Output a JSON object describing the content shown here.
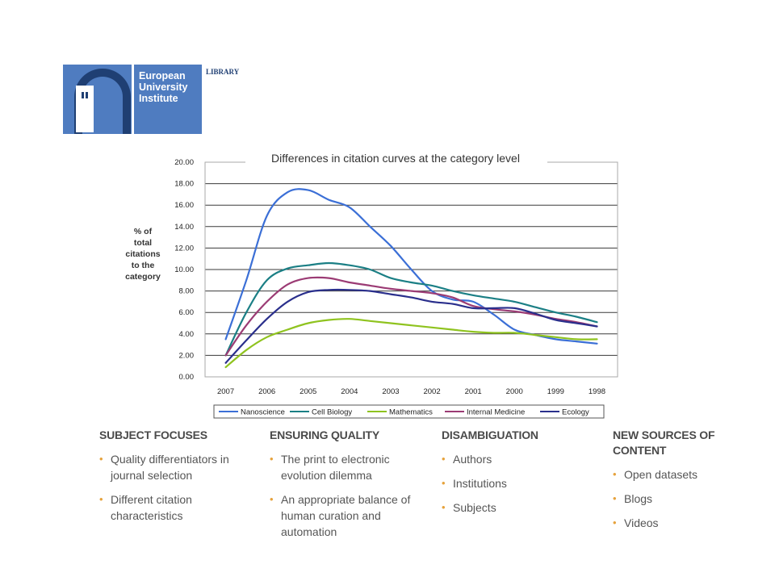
{
  "logo": {
    "line1": "European",
    "line2": "University",
    "line3": "Institute",
    "library": "LIBRARY",
    "colors": {
      "blue": "#4f7cc0",
      "dark": "#1f3f73"
    }
  },
  "chart_data": {
    "type": "line",
    "title": "Differences in citation curves at the category level",
    "ylabel": "% of total citations to the category",
    "ylabel_lines": [
      "% of",
      "total",
      "citations",
      "to the",
      "category"
    ],
    "xlabel": "",
    "categories": [
      "2007",
      "2006",
      "2005",
      "2004",
      "2003",
      "2002",
      "2001",
      "2000",
      "1999",
      "1998"
    ],
    "yticks": [
      "0.00",
      "2.00",
      "4.00",
      "6.00",
      "8.00",
      "10.00",
      "12.00",
      "14.00",
      "16.00",
      "18.00",
      "20.00"
    ],
    "ylim": [
      0,
      20
    ],
    "grid": true,
    "legend_position": "bottom",
    "series": [
      {
        "name": "Nanoscience",
        "color": "#3b6fd6",
        "points": [
          [
            0,
            3.5
          ],
          [
            0.5,
            9
          ],
          [
            1,
            15
          ],
          [
            1.5,
            17.2
          ],
          [
            2,
            17.4
          ],
          [
            2.5,
            16.5
          ],
          [
            3,
            15.8
          ],
          [
            3.5,
            14
          ],
          [
            4,
            12.2
          ],
          [
            4.5,
            10
          ],
          [
            5,
            8
          ],
          [
            5.5,
            7.2
          ],
          [
            6,
            7
          ],
          [
            6.5,
            5.8
          ],
          [
            7,
            4.4
          ],
          [
            7.5,
            3.9
          ],
          [
            8,
            3.5
          ],
          [
            8.5,
            3.3
          ],
          [
            9,
            3.1
          ]
        ]
      },
      {
        "name": "Cell Biology",
        "color": "#1b7f85",
        "points": [
          [
            0,
            2
          ],
          [
            0.5,
            6
          ],
          [
            1,
            9
          ],
          [
            1.5,
            10.1
          ],
          [
            2,
            10.4
          ],
          [
            2.5,
            10.6
          ],
          [
            3,
            10.4
          ],
          [
            3.5,
            10
          ],
          [
            4,
            9.2
          ],
          [
            4.5,
            8.8
          ],
          [
            5,
            8.5
          ],
          [
            5.5,
            8
          ],
          [
            6,
            7.6
          ],
          [
            6.5,
            7.3
          ],
          [
            7,
            7
          ],
          [
            7.5,
            6.5
          ],
          [
            8,
            6
          ],
          [
            8.5,
            5.6
          ],
          [
            9,
            5.1
          ]
        ]
      },
      {
        "name": "Mathematics",
        "color": "#8fc31f",
        "points": [
          [
            0,
            0.9
          ],
          [
            0.5,
            2.5
          ],
          [
            1,
            3.7
          ],
          [
            1.5,
            4.4
          ],
          [
            2,
            5
          ],
          [
            2.5,
            5.3
          ],
          [
            3,
            5.4
          ],
          [
            3.5,
            5.2
          ],
          [
            4,
            5
          ],
          [
            4.5,
            4.8
          ],
          [
            5,
            4.6
          ],
          [
            5.5,
            4.4
          ],
          [
            6,
            4.2
          ],
          [
            6.5,
            4.1
          ],
          [
            7,
            4.1
          ],
          [
            7.5,
            3.9
          ],
          [
            8,
            3.7
          ],
          [
            8.5,
            3.5
          ],
          [
            9,
            3.5
          ]
        ]
      },
      {
        "name": "Internal Medicine",
        "color": "#9b3b74",
        "points": [
          [
            0,
            2
          ],
          [
            0.5,
            4.8
          ],
          [
            1,
            7
          ],
          [
            1.5,
            8.6
          ],
          [
            2,
            9.2
          ],
          [
            2.5,
            9.2
          ],
          [
            3,
            8.8
          ],
          [
            3.5,
            8.5
          ],
          [
            4,
            8.2
          ],
          [
            4.5,
            8
          ],
          [
            5,
            7.8
          ],
          [
            5.5,
            7.4
          ],
          [
            6,
            6.6
          ],
          [
            6.5,
            6.3
          ],
          [
            7,
            6.1
          ],
          [
            7.5,
            5.8
          ],
          [
            8,
            5.4
          ],
          [
            8.5,
            5.1
          ],
          [
            9,
            4.7
          ]
        ]
      },
      {
        "name": "Ecology",
        "color": "#2a2f8c",
        "points": [
          [
            0,
            1.3
          ],
          [
            0.5,
            3.4
          ],
          [
            1,
            5.4
          ],
          [
            1.5,
            7
          ],
          [
            2,
            7.9
          ],
          [
            2.5,
            8.1
          ],
          [
            3,
            8.1
          ],
          [
            3.5,
            8
          ],
          [
            4,
            7.7
          ],
          [
            4.5,
            7.4
          ],
          [
            5,
            7
          ],
          [
            5.5,
            6.8
          ],
          [
            6,
            6.4
          ],
          [
            6.5,
            6.4
          ],
          [
            7,
            6.4
          ],
          [
            7.5,
            5.9
          ],
          [
            8,
            5.3
          ],
          [
            8.5,
            5
          ],
          [
            9,
            4.7
          ]
        ]
      }
    ]
  },
  "columns": [
    {
      "heading": "SUBJECT FOCUSES",
      "items": [
        "Quality differentiators in journal selection",
        "Different citation characteristics"
      ]
    },
    {
      "heading": "ENSURING QUALITY",
      "items": [
        "The print to electronic evolution dilemma",
        "An appropriate balance of human curation and automation"
      ]
    },
    {
      "heading": "DISAMBIGUATION",
      "items": [
        "Authors",
        "Institutions",
        "Subjects"
      ]
    },
    {
      "heading": "NEW SOURCES OF CONTENT",
      "items": [
        "Open datasets",
        "Blogs",
        "Videos"
      ]
    }
  ],
  "colors": {
    "bullet": "#e6a23c",
    "heading": "#4a4a4a"
  }
}
